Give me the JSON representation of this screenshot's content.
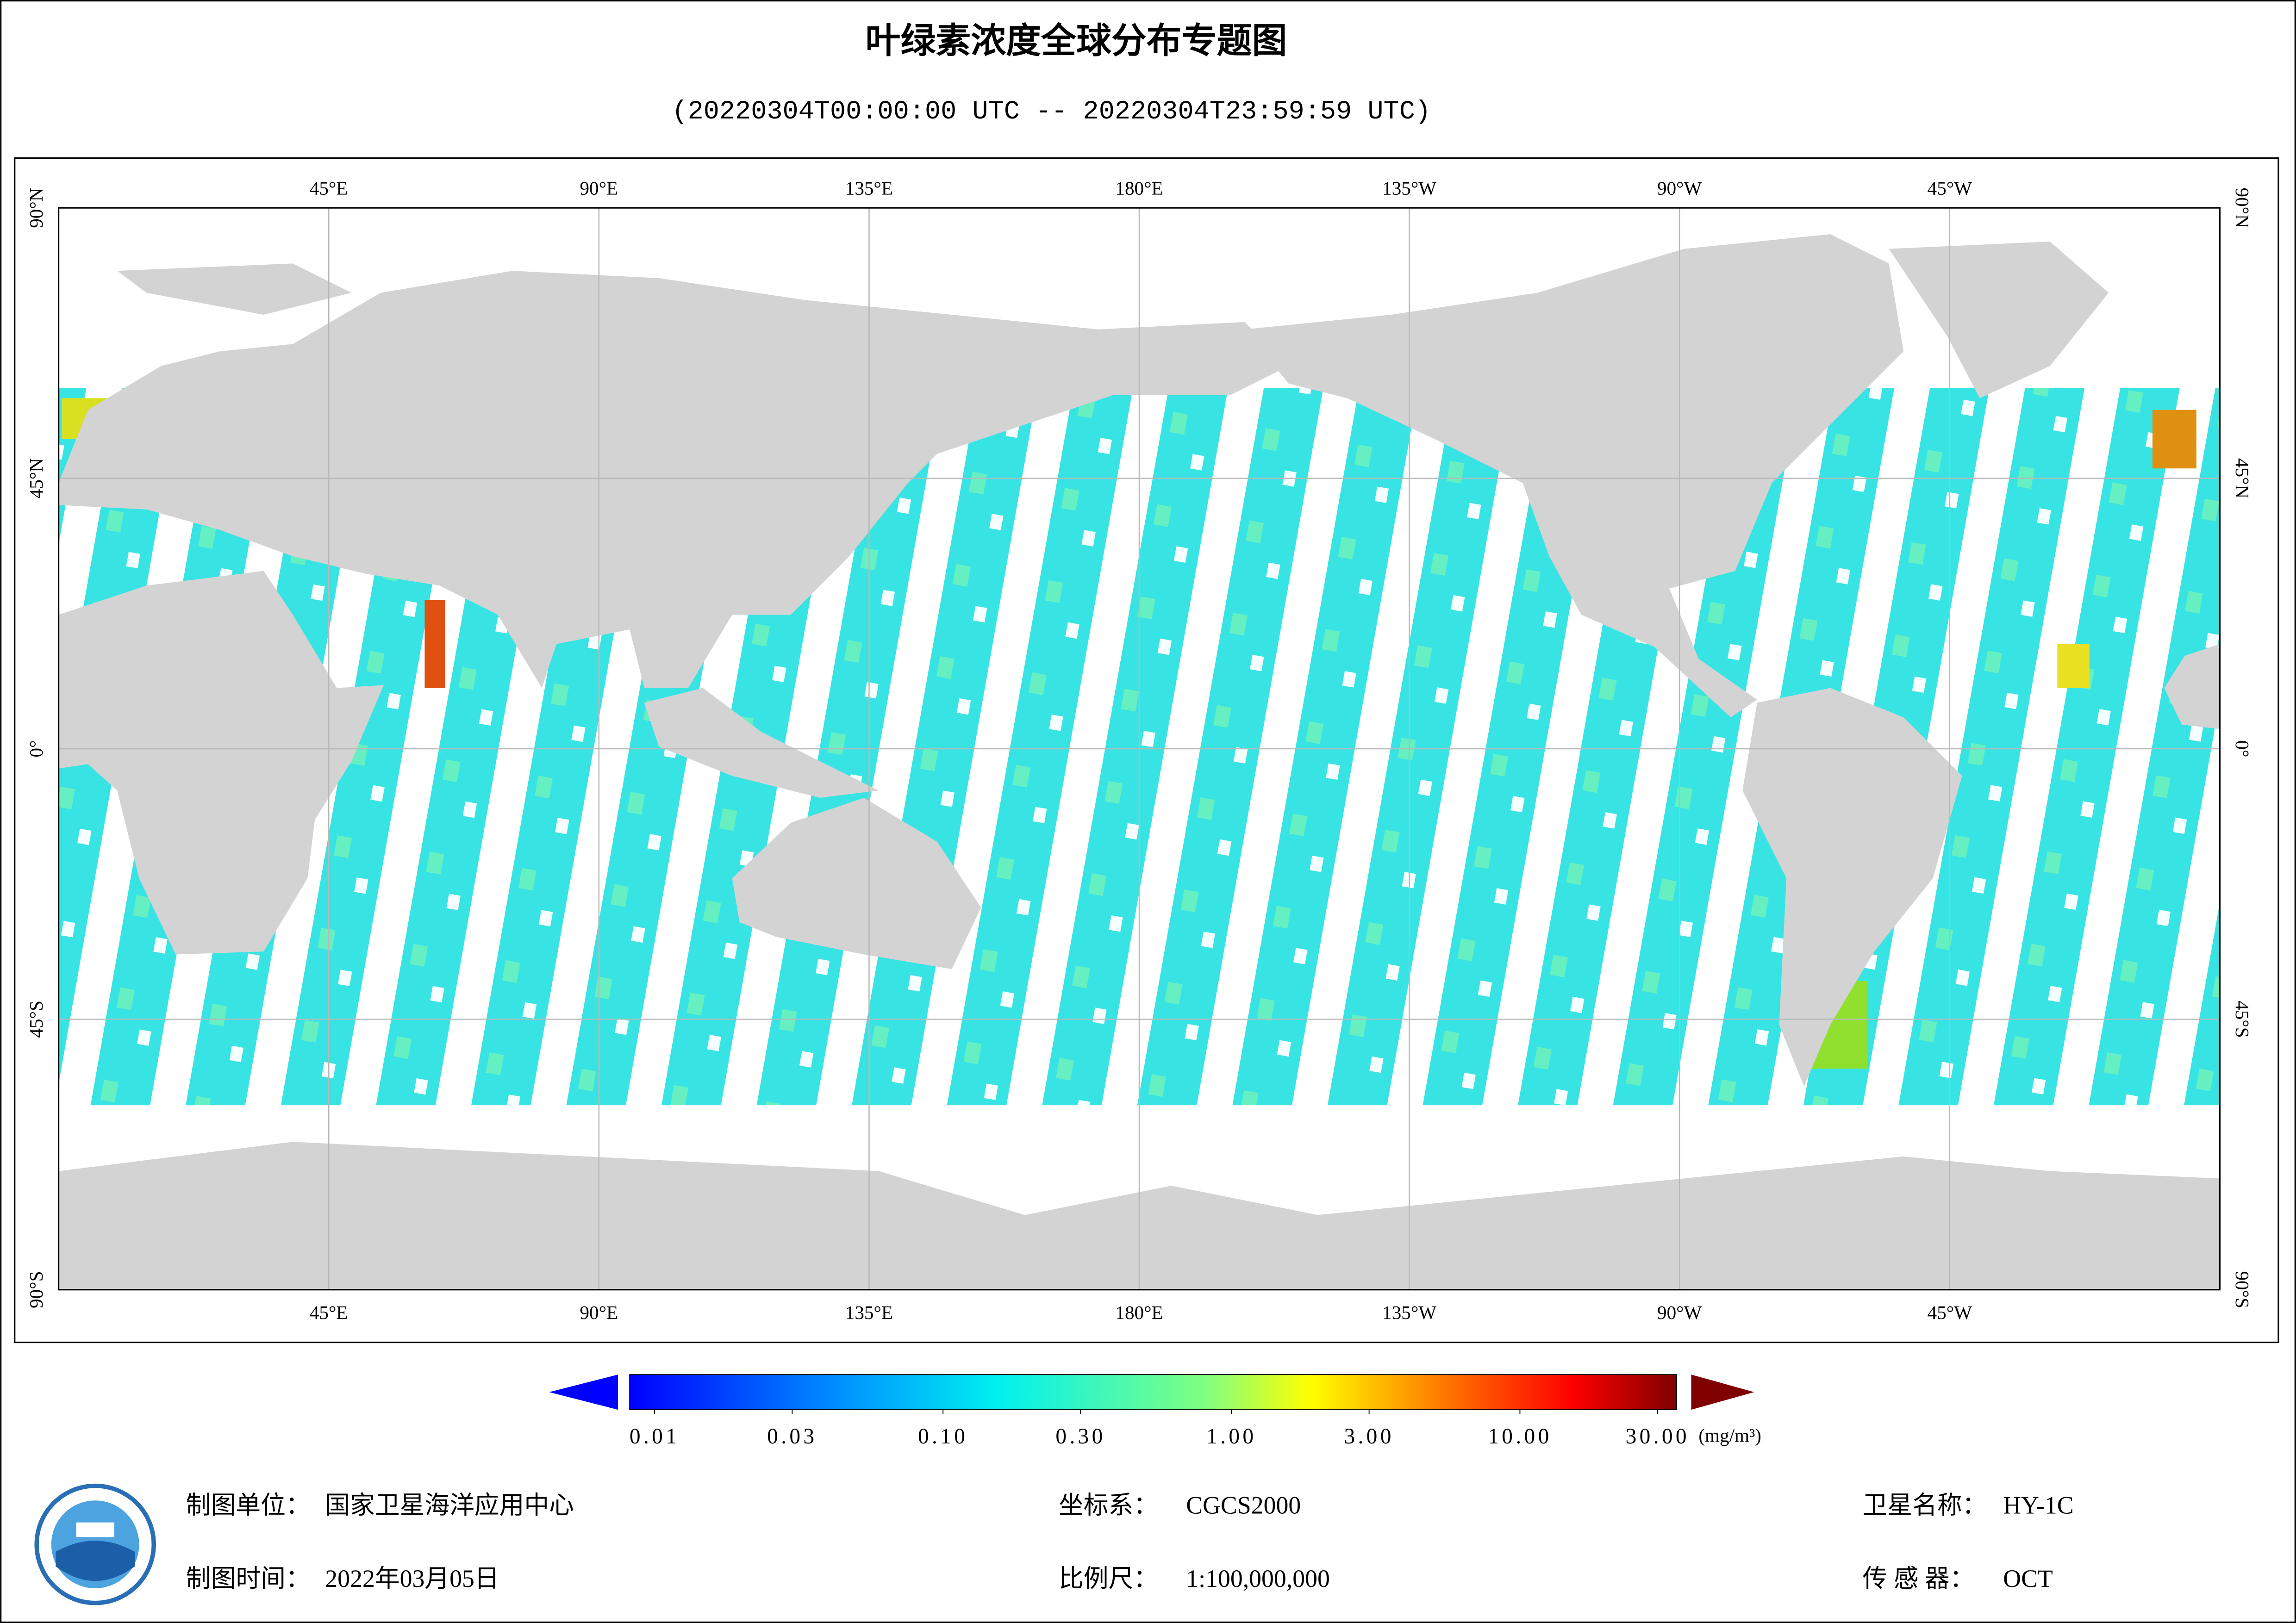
{
  "header": {
    "title": "叶绿素浓度全球分布专题图",
    "subtitle": "(20220304T00:00:00 UTC -- 20220304T23:59:59 UTC)"
  },
  "map": {
    "lonlim": [
      0,
      360
    ],
    "latlim": [
      -90,
      90
    ],
    "lon_ticks": [
      {
        "value": 45,
        "label": "45°E"
      },
      {
        "value": 90,
        "label": "90°E"
      },
      {
        "value": 135,
        "label": "135°E"
      },
      {
        "value": 180,
        "label": "180°E"
      },
      {
        "value": 225,
        "label": "135°W"
      },
      {
        "value": 270,
        "label": "90°W"
      },
      {
        "value": 315,
        "label": "45°W"
      }
    ],
    "lat_ticks": [
      {
        "value": 90,
        "label": "90°N"
      },
      {
        "value": 45,
        "label": "45°N"
      },
      {
        "value": 0,
        "label": "0°"
      },
      {
        "value": -45,
        "label": "45°S"
      },
      {
        "value": -90,
        "label": "90°S"
      }
    ]
  },
  "colorbar": {
    "scale": "log",
    "lim": [
      0.01,
      30
    ],
    "ticks": [
      {
        "value": 0.01,
        "label": "0.01"
      },
      {
        "value": 0.03,
        "label": "0.03"
      },
      {
        "value": 0.1,
        "label": "0.10"
      },
      {
        "value": 0.3,
        "label": "0.30"
      },
      {
        "value": 1,
        "label": "1.00"
      },
      {
        "value": 3,
        "label": "3.00"
      },
      {
        "value": 10,
        "label": "10.00"
      },
      {
        "value": 30,
        "label": "30.00"
      }
    ],
    "unit": "(mg/m³)"
  },
  "footer": {
    "org": {
      "label": "制图单位：",
      "value": "国家卫星海洋应用中心"
    },
    "date": {
      "label": "制图时间：",
      "value": "2022年03月05日"
    },
    "crs": {
      "label": "坐标系：",
      "value": "CGCS2000"
    },
    "scale": {
      "label": "比例尺：",
      "value": "1:100,000,000"
    },
    "satellite": {
      "label": "卫星名称：",
      "value": "HY-1C"
    },
    "sensor": {
      "label": "传 感 器：",
      "value": "OCT"
    }
  }
}
